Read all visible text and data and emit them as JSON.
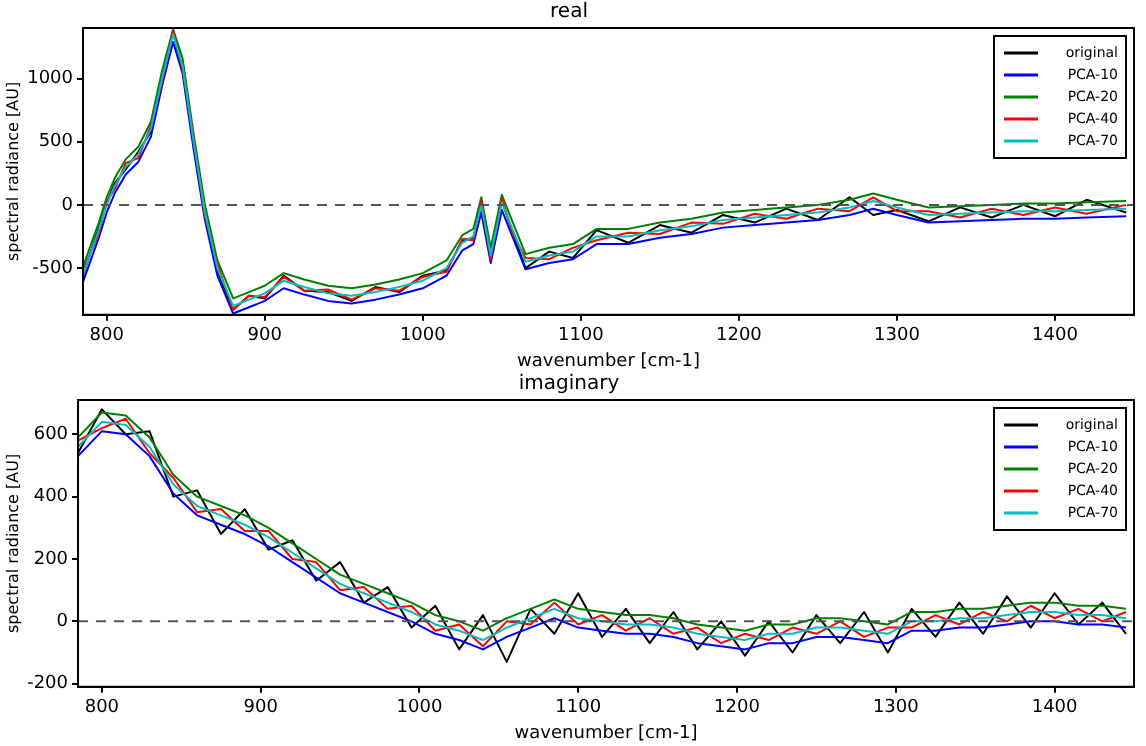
{
  "chart_data": [
    {
      "type": "line",
      "title": "real",
      "xlabel": "wavenumber [cm-1]",
      "ylabel": "spectral radiance [AU]",
      "xlim": [
        785,
        1450
      ],
      "xticks": [
        800,
        900,
        1000,
        1100,
        1200,
        1300,
        1400
      ],
      "ylim": [
        -870,
        1400
      ],
      "yticks": [
        -500,
        0,
        500,
        1000
      ],
      "legend": "top right",
      "grid": false,
      "ref_lines": [
        {
          "axis": "y",
          "value": 0,
          "color": "#555555",
          "line_style": "dashed"
        }
      ],
      "x": [
        785,
        795,
        800,
        805,
        812,
        820,
        828,
        835,
        842,
        848,
        855,
        862,
        870,
        880,
        890,
        900,
        912,
        925,
        940,
        955,
        970,
        985,
        1000,
        1015,
        1025,
        1032,
        1037,
        1043,
        1050,
        1057,
        1065,
        1080,
        1095,
        1110,
        1130,
        1150,
        1170,
        1190,
        1210,
        1230,
        1250,
        1270,
        1285,
        1300,
        1320,
        1340,
        1360,
        1380,
        1400,
        1420,
        1445
      ],
      "series": [
        {
          "name": "original",
          "color": "#000000",
          "values": [
            -560,
            -180,
            10,
            170,
            280,
            420,
            580,
            1020,
            1370,
            1080,
            520,
            -60,
            -520,
            -830,
            -720,
            -740,
            -560,
            -680,
            -690,
            -760,
            -650,
            -690,
            -560,
            -520,
            -280,
            -260,
            10,
            -420,
            30,
            -220,
            -500,
            -370,
            -420,
            -200,
            -300,
            -160,
            -220,
            -80,
            -140,
            -30,
            -120,
            60,
            -80,
            -40,
            -130,
            -20,
            -100,
            0,
            -90,
            40,
            -60
          ]
        },
        {
          "name": "PCA-10",
          "color": "#0000ff",
          "values": [
            -610,
            -260,
            -60,
            90,
            240,
            340,
            540,
            940,
            1290,
            1040,
            440,
            -110,
            -560,
            -860,
            -810,
            -760,
            -660,
            -710,
            -760,
            -780,
            -750,
            -710,
            -660,
            -560,
            -360,
            -310,
            -60,
            -460,
            -40,
            -260,
            -510,
            -460,
            -430,
            -310,
            -310,
            -260,
            -230,
            -180,
            -160,
            -140,
            -120,
            -80,
            -30,
            -80,
            -140,
            -130,
            -120,
            -110,
            -110,
            -100,
            -90
          ]
        },
        {
          "name": "PCA-20",
          "color": "#008000",
          "values": [
            -490,
            -140,
            60,
            210,
            360,
            460,
            660,
            1060,
            1390,
            1160,
            560,
            10,
            -440,
            -740,
            -690,
            -640,
            -540,
            -590,
            -640,
            -660,
            -630,
            -590,
            -540,
            -440,
            -240,
            -190,
            60,
            -340,
            80,
            -140,
            -390,
            -340,
            -310,
            -190,
            -190,
            -140,
            -110,
            -60,
            -40,
            -20,
            0,
            40,
            90,
            40,
            -20,
            -10,
            0,
            10,
            10,
            20,
            30
          ]
        },
        {
          "name": "PCA-40",
          "color": "#ff0000",
          "values": [
            -520,
            -230,
            30,
            120,
            330,
            370,
            630,
            970,
            1380,
            1070,
            530,
            -80,
            -470,
            -830,
            -720,
            -730,
            -570,
            -680,
            -670,
            -750,
            -660,
            -680,
            -570,
            -530,
            -270,
            -280,
            30,
            -430,
            50,
            -230,
            -420,
            -430,
            -340,
            -280,
            -220,
            -230,
            -140,
            -150,
            -70,
            -110,
            -30,
            -50,
            60,
            -50,
            -50,
            -100,
            -30,
            -80,
            -20,
            -70,
            0
          ]
        },
        {
          "name": "PCA-70",
          "color": "#00bfbf",
          "values": [
            -550,
            -200,
            0,
            150,
            300,
            400,
            600,
            1000,
            1350,
            1100,
            500,
            -50,
            -500,
            -800,
            -750,
            -700,
            -600,
            -650,
            -700,
            -720,
            -690,
            -650,
            -600,
            -500,
            -300,
            -250,
            0,
            -400,
            20,
            -200,
            -450,
            -400,
            -370,
            -250,
            -250,
            -200,
            -170,
            -120,
            -100,
            -80,
            -60,
            -20,
            30,
            -20,
            -80,
            -70,
            -60,
            -50,
            -50,
            -40,
            -30
          ]
        }
      ]
    },
    {
      "type": "line",
      "title": "imaginary",
      "xlabel": "wavenumber [cm-1]",
      "ylabel": "spectral radiance [AU]",
      "xlim": [
        785,
        1450
      ],
      "xticks": [
        800,
        900,
        1000,
        1100,
        1200,
        1300,
        1400
      ],
      "ylim": [
        -210,
        710
      ],
      "yticks": [
        -200,
        0,
        200,
        400,
        600
      ],
      "legend": "top right",
      "grid": false,
      "ref_lines": [
        {
          "axis": "y",
          "value": 0,
          "color": "#555555",
          "line_style": "dashed"
        }
      ],
      "x": [
        785,
        800,
        815,
        830,
        845,
        860,
        875,
        890,
        905,
        920,
        935,
        950,
        965,
        980,
        995,
        1010,
        1025,
        1040,
        1055,
        1070,
        1085,
        1100,
        1115,
        1130,
        1145,
        1160,
        1175,
        1190,
        1205,
        1220,
        1235,
        1250,
        1265,
        1280,
        1295,
        1310,
        1325,
        1340,
        1355,
        1370,
        1385,
        1400,
        1415,
        1430,
        1445
      ],
      "series": [
        {
          "name": "original",
          "color": "#000000",
          "values": [
            540,
            680,
            600,
            610,
            400,
            420,
            280,
            360,
            230,
            260,
            130,
            190,
            60,
            110,
            -20,
            50,
            -90,
            20,
            -130,
            40,
            -40,
            90,
            -50,
            40,
            -70,
            30,
            -90,
            0,
            -110,
            0,
            -100,
            20,
            -70,
            30,
            -100,
            40,
            -50,
            60,
            -40,
            80,
            -20,
            90,
            -10,
            60,
            -40
          ]
        },
        {
          "name": "PCA-10",
          "color": "#0000ff",
          "values": [
            530,
            610,
            600,
            530,
            410,
            340,
            310,
            280,
            240,
            190,
            140,
            90,
            60,
            30,
            0,
            -40,
            -60,
            -90,
            -50,
            -20,
            10,
            -20,
            -30,
            -40,
            -40,
            -50,
            -70,
            -80,
            -90,
            -70,
            -70,
            -50,
            -50,
            -60,
            -70,
            -30,
            -30,
            -20,
            -20,
            -10,
            0,
            0,
            -10,
            -10,
            -20
          ]
        },
        {
          "name": "PCA-20",
          "color": "#008000",
          "values": [
            590,
            670,
            660,
            590,
            470,
            400,
            370,
            340,
            300,
            250,
            200,
            150,
            120,
            90,
            60,
            20,
            0,
            -30,
            10,
            40,
            70,
            40,
            30,
            20,
            20,
            10,
            -10,
            -20,
            -30,
            -10,
            -10,
            10,
            10,
            0,
            -10,
            30,
            30,
            40,
            40,
            50,
            60,
            60,
            50,
            50,
            40
          ]
        },
        {
          "name": "PCA-40",
          "color": "#ff0000",
          "values": [
            580,
            620,
            650,
            540,
            460,
            350,
            360,
            290,
            290,
            200,
            190,
            100,
            110,
            40,
            50,
            -30,
            -10,
            -80,
            0,
            -10,
            60,
            -10,
            20,
            -30,
            10,
            -40,
            -20,
            -70,
            -40,
            -60,
            -20,
            -40,
            0,
            -50,
            -20,
            -20,
            20,
            -10,
            30,
            0,
            50,
            10,
            40,
            0,
            30
          ]
        },
        {
          "name": "PCA-70",
          "color": "#00bfbf",
          "values": [
            560,
            640,
            630,
            560,
            440,
            370,
            340,
            310,
            270,
            220,
            170,
            120,
            90,
            60,
            30,
            -10,
            -30,
            -60,
            -20,
            10,
            40,
            10,
            0,
            -10,
            -10,
            -20,
            -40,
            -50,
            -60,
            -40,
            -40,
            -20,
            -20,
            -30,
            -40,
            0,
            0,
            10,
            10,
            20,
            30,
            30,
            20,
            20,
            10
          ]
        }
      ]
    }
  ]
}
